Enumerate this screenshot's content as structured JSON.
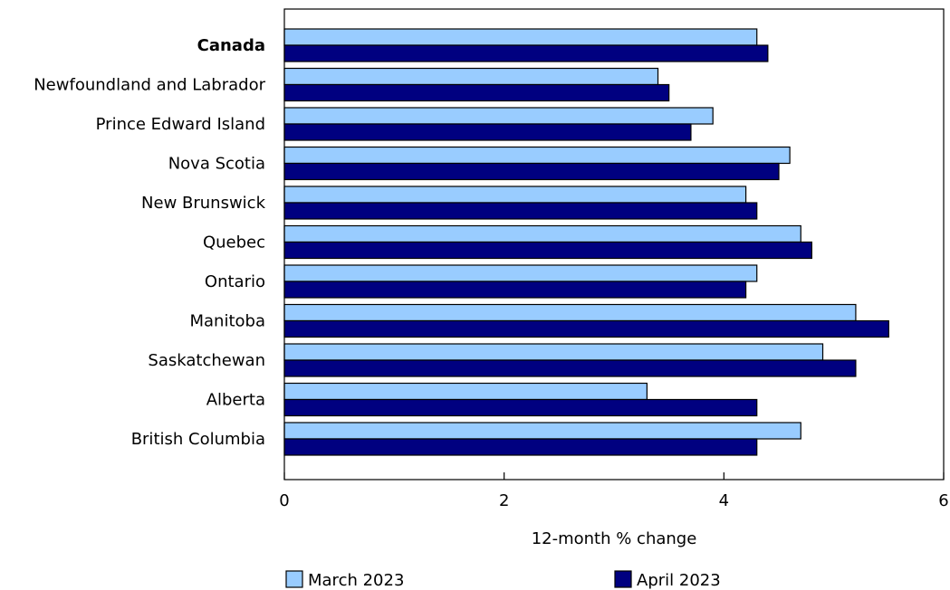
{
  "chart_data": {
    "type": "bar",
    "orientation": "horizontal",
    "categories": [
      "Canada",
      "Newfoundland and Labrador",
      "Prince Edward Island",
      "Nova Scotia",
      "New Brunswick",
      "Quebec",
      "Ontario",
      "Manitoba",
      "Saskatchewan",
      "Alberta",
      "British Columbia"
    ],
    "bold_categories": [
      "Canada"
    ],
    "series": [
      {
        "name": "March 2023",
        "color": "#99ccff",
        "values": [
          4.3,
          3.4,
          3.9,
          4.6,
          4.2,
          4.7,
          4.3,
          5.2,
          4.9,
          3.3,
          4.7
        ]
      },
      {
        "name": "April 2023",
        "color": "#000080",
        "values": [
          4.4,
          3.5,
          3.7,
          4.5,
          4.3,
          4.8,
          4.2,
          5.5,
          5.2,
          4.3,
          4.3
        ]
      }
    ],
    "xlabel": "12-month % change",
    "ylabel": "",
    "xlim": [
      0,
      6
    ],
    "xticks": [
      0,
      2,
      4,
      6
    ],
    "grid": false,
    "legend_position": "bottom"
  }
}
